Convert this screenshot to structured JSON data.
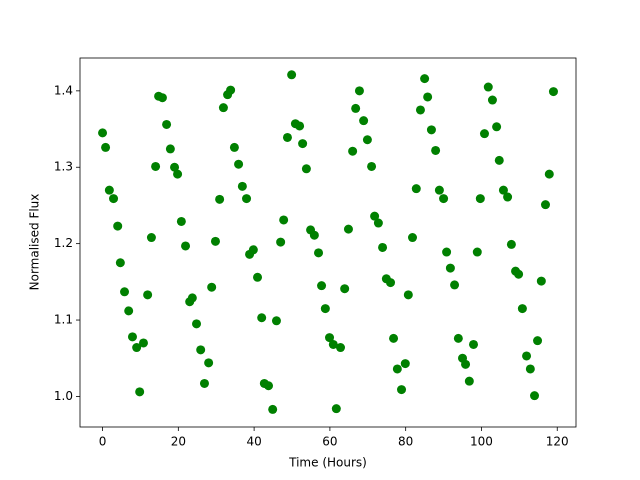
{
  "chart_data": {
    "type": "scatter",
    "x_label": "Time (Hours)",
    "y_label": "Normalised Flux",
    "color": "#008000",
    "x": [
      0,
      0.8,
      1.8,
      2.9,
      4.0,
      4.7,
      5.8,
      6.9,
      7.9,
      9.0,
      9.8,
      10.8,
      11.9,
      12.9,
      14.0,
      14.8,
      15.8,
      16.9,
      17.9,
      19.0,
      19.8,
      20.8,
      21.9,
      23.0,
      23.7,
      24.8,
      25.9,
      26.9,
      28.0,
      28.8,
      29.8,
      30.9,
      31.9,
      33.0,
      33.8,
      34.8,
      35.9,
      36.9,
      38.0,
      38.8,
      39.8,
      40.9,
      42.0,
      42.7,
      43.8,
      44.9,
      45.9,
      47.0,
      47.8,
      48.8,
      49.9,
      50.9,
      52.0,
      52.8,
      53.8,
      54.9,
      55.9,
      57.0,
      57.8,
      58.8,
      59.9,
      60.9,
      61.7,
      62.8,
      63.9,
      64.9,
      66.0,
      66.8,
      67.8,
      68.9,
      69.9,
      71.0,
      71.8,
      72.8,
      73.9,
      74.9,
      76.0,
      76.8,
      77.8,
      78.9,
      79.9,
      80.7,
      81.8,
      82.8,
      83.9,
      85.0,
      85.8,
      86.8,
      87.9,
      88.9,
      90.0,
      90.8,
      91.8,
      92.9,
      93.9,
      95.0,
      95.8,
      96.8,
      97.9,
      98.9,
      99.7,
      100.8,
      101.8,
      102.9,
      104.0,
      104.7,
      105.8,
      106.9,
      107.9,
      109.0,
      109.8,
      110.8,
      111.9,
      112.9,
      114.0,
      114.8,
      115.8,
      116.9,
      117.9,
      119.0
    ],
    "values": [
      1.345,
      1.326,
      1.27,
      1.259,
      1.223,
      1.175,
      1.137,
      1.112,
      1.078,
      1.064,
      1.006,
      1.07,
      1.133,
      1.208,
      1.301,
      1.393,
      1.391,
      1.356,
      1.324,
      1.3,
      1.291,
      1.229,
      1.197,
      1.124,
      1.129,
      1.095,
      1.061,
      1.017,
      1.044,
      1.143,
      1.203,
      1.258,
      1.378,
      1.395,
      1.401,
      1.326,
      1.304,
      1.275,
      1.259,
      1.186,
      1.192,
      1.156,
      1.103,
      1.017,
      1.014,
      0.983,
      1.099,
      1.202,
      1.231,
      1.339,
      1.421,
      1.357,
      1.354,
      1.331,
      1.298,
      1.218,
      1.211,
      1.188,
      1.145,
      1.115,
      1.077,
      1.068,
      0.984,
      1.064,
      1.141,
      1.219,
      1.321,
      1.377,
      1.4,
      1.361,
      1.336,
      1.301,
      1.236,
      1.227,
      1.195,
      1.154,
      1.149,
      1.076,
      1.036,
      1.009,
      1.043,
      1.133,
      1.208,
      1.272,
      1.375,
      1.416,
      1.392,
      1.349,
      1.322,
      1.27,
      1.259,
      1.189,
      1.168,
      1.146,
      1.076,
      1.05,
      1.042,
      1.02,
      1.068,
      1.189,
      1.259,
      1.344,
      1.405,
      1.388,
      1.353,
      1.309,
      1.27,
      1.261,
      1.199,
      1.164,
      1.16,
      1.115,
      1.053,
      1.036,
      1.001,
      1.073,
      1.151,
      1.251,
      1.291,
      1.399
    ],
    "xlim": [
      -5.95,
      124.95
    ],
    "xticks": [
      0,
      20,
      40,
      60,
      80,
      100,
      120
    ],
    "ylim": [
      0.96,
      1.443
    ],
    "yticks": [
      {
        "value": 1.0,
        "label": "1.0"
      },
      1.1,
      1.2,
      1.3,
      1.4
    ]
  }
}
